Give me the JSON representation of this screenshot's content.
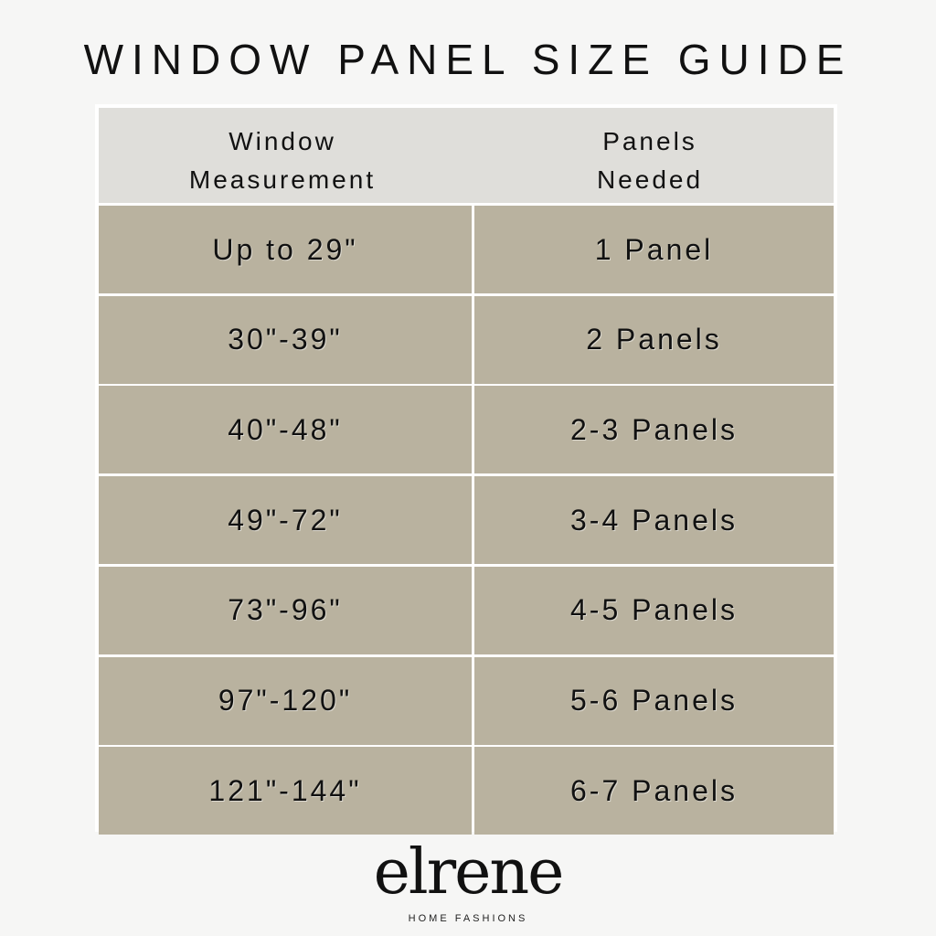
{
  "title": "WINDOW PANEL SIZE GUIDE",
  "table": {
    "headers": [
      "Window\nMeasurement",
      "Panels\nNeeded"
    ],
    "header_lines": [
      [
        "Window",
        "Measurement"
      ],
      [
        "Panels",
        "Needed"
      ]
    ],
    "rows": [
      [
        "Up to 29\"",
        "1 Panel"
      ],
      [
        "30\"-39\"",
        "2 Panels"
      ],
      [
        "40\"-48\"",
        "2-3 Panels"
      ],
      [
        "49\"-72\"",
        "3-4 Panels"
      ],
      [
        "73\"-96\"",
        "4-5 Panels"
      ],
      [
        "97\"-120\"",
        "5-6 Panels"
      ],
      [
        "121\"-144\"",
        "6-7 Panels"
      ]
    ]
  },
  "brand": {
    "name": "elrene",
    "tagline": "HOME FASHIONS"
  },
  "colors": {
    "header_bg": "#dfdeda",
    "row_bg": "#b9b29f",
    "page_bg": "#f6f6f5"
  }
}
